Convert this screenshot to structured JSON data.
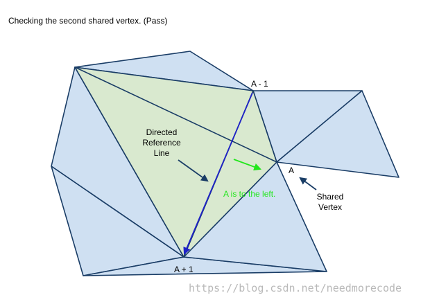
{
  "title": "Checking the second shared vertex. (Pass)",
  "labels": {
    "a_minus_1": "A - 1",
    "a": "A",
    "a_plus_1": "A + 1",
    "directed_line_1": "Directed",
    "directed_line_2": "Reference",
    "directed_line_3": "Line",
    "shared_1": "Shared",
    "shared_2": "Vertex",
    "a_left": "A is to the left."
  },
  "watermark": "https://blog.csdn.net/needmorecode",
  "colors": {
    "mesh_fill": "#cfe0f2",
    "highlight_fill": "#d9e9cf",
    "edge": "#1a3d66",
    "reference_line": "#1f22c8",
    "green_arrow": "#22e61c",
    "pointer_arrow": "#1a3d66"
  }
}
